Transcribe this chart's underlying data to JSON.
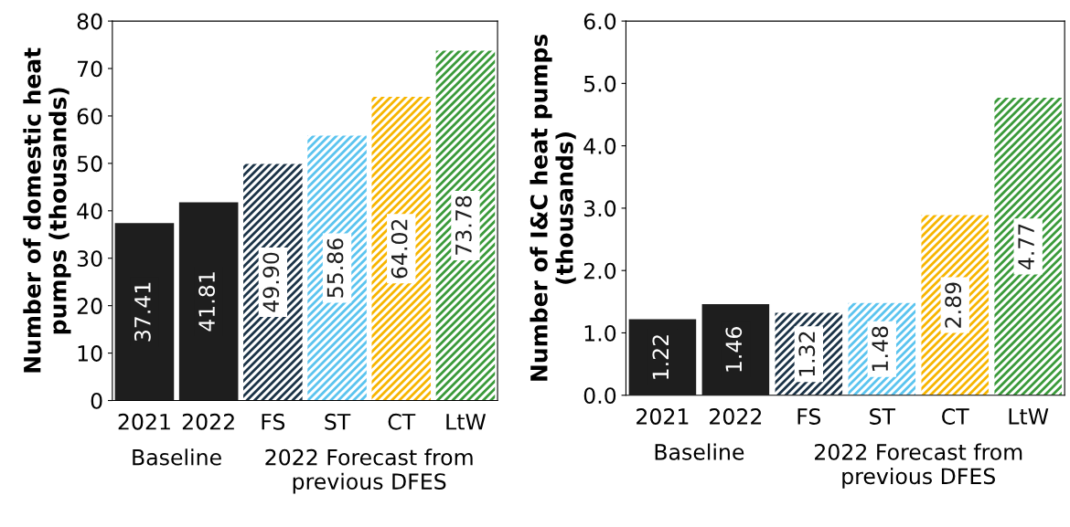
{
  "chart_data": [
    {
      "type": "bar",
      "ylabel": "Number of domestic heat pumps (thousands)",
      "categories": [
        "2021",
        "2022",
        "FS",
        "ST",
        "CT",
        "LtW"
      ],
      "values": [
        37.41,
        41.81,
        49.9,
        55.86,
        64.02,
        73.78
      ],
      "value_labels": [
        "37.41",
        "41.81",
        "49.90",
        "55.86",
        "64.02",
        "73.78"
      ],
      "colors": [
        "#1e1e1e",
        "#1e1e1e",
        "#1b3347",
        "#5bc4ef",
        "#f7b500",
        "#3a9a3a"
      ],
      "ylim": [
        0,
        80
      ],
      "yticks": [
        0,
        10,
        20,
        30,
        40,
        50,
        60,
        70,
        80
      ],
      "grid": false,
      "legend": false,
      "annotations": [
        "Baseline",
        "2022 Forecast from previous DFES"
      ]
    },
    {
      "type": "bar",
      "ylabel": "Number of I&C heat pumps (thousands)",
      "categories": [
        "2021",
        "2022",
        "FS",
        "ST",
        "CT",
        "LtW"
      ],
      "values": [
        1.22,
        1.46,
        1.32,
        1.48,
        2.89,
        4.77
      ],
      "value_labels": [
        "1.22",
        "1.46",
        "1.32",
        "1.48",
        "2.89",
        "4.77"
      ],
      "colors": [
        "#1e1e1e",
        "#1e1e1e",
        "#1b3347",
        "#5bc4ef",
        "#f7b500",
        "#3a9a3a"
      ],
      "ylim": [
        0,
        6
      ],
      "yticks": [
        {
          "value": 0,
          "label": "0.0"
        },
        {
          "value": 1,
          "label": "1.0"
        },
        {
          "value": 2,
          "label": "2.0"
        },
        {
          "value": 3,
          "label": "3.0"
        },
        {
          "value": 4,
          "label": "4.0"
        },
        {
          "value": 5,
          "label": "5.0"
        },
        {
          "value": 6,
          "label": "6.0"
        }
      ],
      "grid": false,
      "legend": false,
      "annotations": [
        "Baseline",
        "2022 Forecast from previous DFES"
      ]
    }
  ]
}
